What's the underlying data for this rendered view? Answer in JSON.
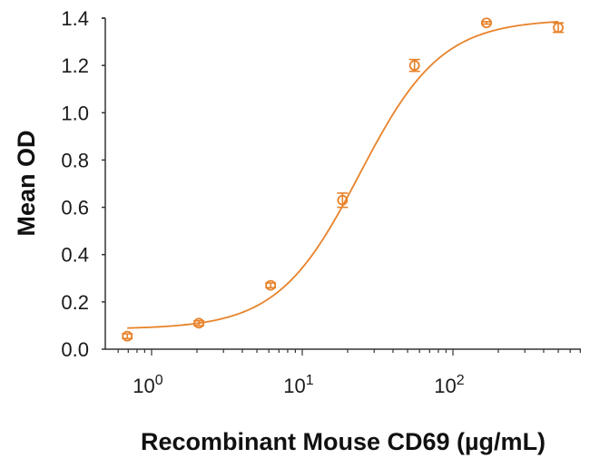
{
  "chart_data": {
    "type": "scatter",
    "title": "",
    "xlabel": "Recombinant Mouse CD69 (µg/mL)",
    "ylabel": "Mean OD",
    "xscale": "log",
    "xlim": [
      0.5,
      700
    ],
    "ylim": [
      0.0,
      1.4
    ],
    "grid": false,
    "legend": "none",
    "y_ticks": [
      "0.0",
      "0.2",
      "0.4",
      "0.6",
      "0.8",
      "1.0",
      "1.2",
      "1.4"
    ],
    "x_ticks": [
      {
        "base": "10",
        "exp": "0"
      },
      {
        "base": "10",
        "exp": "1"
      },
      {
        "base": "10",
        "exp": "2"
      }
    ],
    "series": [
      {
        "name": "Mean OD",
        "color": "#E8822A",
        "x": [
          0.69,
          2.06,
          6.17,
          18.5,
          55.6,
          167,
          500
        ],
        "y": [
          0.055,
          0.11,
          0.27,
          0.63,
          1.2,
          1.38,
          1.36
        ],
        "error": [
          0.01,
          0.01,
          0.01,
          0.03,
          0.025,
          0.005,
          0.02
        ]
      }
    ],
    "fit": {
      "type": "4PL",
      "color": "#E8822A",
      "bottom": 0.085,
      "top": 1.395,
      "ec50": 24,
      "hill": 1.6
    }
  }
}
